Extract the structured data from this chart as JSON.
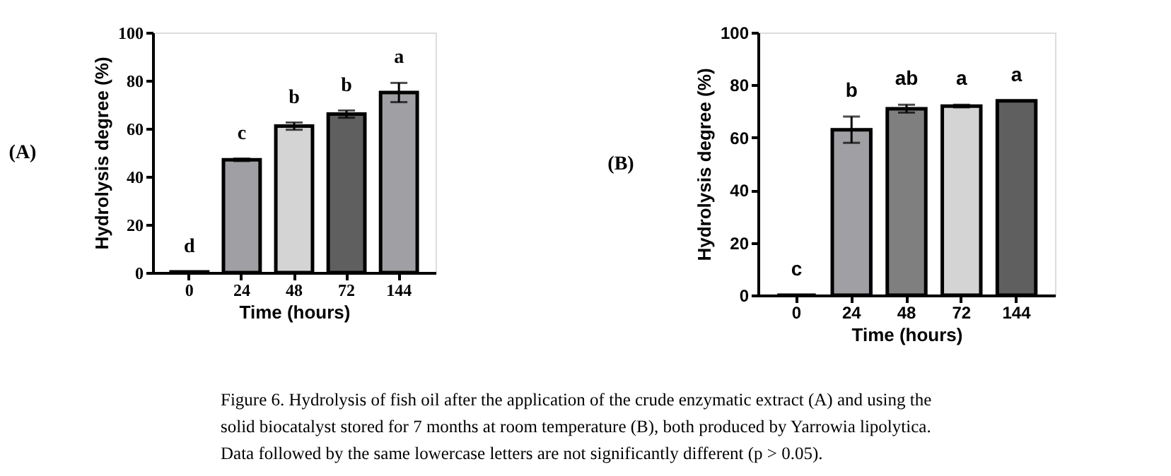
{
  "chart_data": [
    {
      "type": "bar",
      "title": "(A)",
      "xlabel": "Time (hours)",
      "ylabel": "Hydrolysis degree (%)",
      "categories": [
        "0",
        "24",
        "48",
        "72",
        "144"
      ],
      "values": [
        0.3,
        47,
        61,
        66,
        75
      ],
      "errors": [
        null,
        0.5,
        1.5,
        1.5,
        4
      ],
      "colors": [
        "#000000",
        "#a0a0a4",
        "#d4d4d4",
        "#5f5f5f",
        "#a0a0a4"
      ],
      "ylim": [
        0,
        100
      ],
      "yticks": [
        0,
        20,
        40,
        60,
        80,
        100
      ],
      "grid": false,
      "legend": false,
      "annotations": [
        {
          "text": "d",
          "x": "0",
          "y": 0.3
        },
        {
          "text": "c",
          "x": "24",
          "y": 47.5
        },
        {
          "text": "b",
          "x": "48",
          "y": 62.5
        },
        {
          "text": "b",
          "x": "72",
          "y": 67.5
        },
        {
          "text": "a",
          "x": "144",
          "y": 79
        }
      ]
    },
    {
      "type": "bar",
      "title": "(B)",
      "xlabel": "Time (hours)",
      "ylabel": "Hydrolysis degree (%)",
      "categories": [
        "0",
        "24",
        "48",
        "72",
        "144"
      ],
      "values": [
        0,
        63,
        71,
        72,
        74
      ],
      "errors": [
        null,
        5,
        1.5,
        0.5,
        null
      ],
      "colors": [
        "#000000",
        "#a0a0a4",
        "#7f7f7f",
        "#d4d4d4",
        "#5f5f5f"
      ],
      "ylim": [
        0,
        100
      ],
      "yticks": [
        0,
        20,
        40,
        60,
        80,
        100
      ],
      "grid": false,
      "legend": false,
      "annotations": [
        {
          "text": "c",
          "x": "0",
          "y": 0
        },
        {
          "text": "b",
          "x": "24",
          "y": 68
        },
        {
          "text": "ab",
          "x": "48",
          "y": 72.5
        },
        {
          "text": "a",
          "x": "72",
          "y": 72.5
        },
        {
          "text": "a",
          "x": "144",
          "y": 74
        },
        "Figure 6. Hydrolysis of fish oil after the application of the crude enzymatic extract (A) and using the solid biocatalyst stored for 7 months at room temperature (B), both produced by Yarrowia lipolytica. Data followed by the same lowercase letters are not significantly different (p > 0.05)."
      ]
    }
  ]
}
